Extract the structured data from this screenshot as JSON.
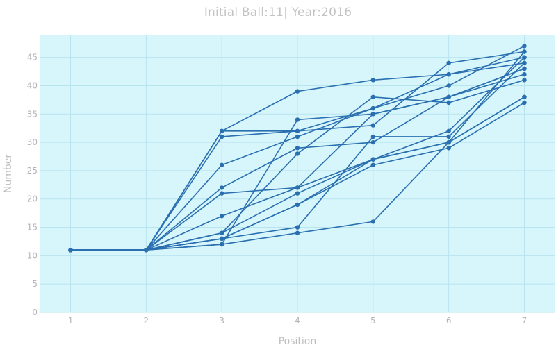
{
  "chart_data": {
    "type": "line",
    "title": "Initial Ball:11| Year:2016",
    "xlabel": "Position",
    "ylabel": "Number",
    "x": [
      1,
      2,
      3,
      4,
      5,
      6,
      7
    ],
    "xlim": [
      0.6,
      7.4
    ],
    "ylim": [
      0,
      49
    ],
    "xticks": [
      1,
      2,
      3,
      4,
      5,
      6,
      7
    ],
    "yticks": [
      0,
      5,
      10,
      15,
      20,
      25,
      30,
      35,
      40,
      45
    ],
    "grid": true,
    "legend": "none",
    "colors": {
      "line": "#2a6fb0",
      "plot_bg": "#d6f6fc",
      "grid": "#b8e4ee"
    },
    "series": [
      {
        "values": [
          11,
          11,
          32,
          39,
          41,
          42,
          44
        ]
      },
      {
        "values": [
          11,
          11,
          31,
          32,
          33,
          44,
          46
        ]
      },
      {
        "values": [
          11,
          11,
          32,
          32,
          36,
          40,
          47
        ]
      },
      {
        "values": [
          11,
          11,
          26,
          31,
          36,
          42,
          45
        ]
      },
      {
        "values": [
          11,
          11,
          22,
          29,
          30,
          38,
          43
        ]
      },
      {
        "values": [
          11,
          11,
          21,
          22,
          27,
          32,
          45
        ]
      },
      {
        "values": [
          11,
          11,
          17,
          22,
          35,
          38,
          42
        ]
      },
      {
        "values": [
          11,
          11,
          14,
          28,
          38,
          37,
          41
        ]
      },
      {
        "values": [
          11,
          11,
          13,
          15,
          31,
          31,
          44
        ]
      },
      {
        "values": [
          11,
          11,
          14,
          21,
          27,
          30,
          38
        ]
      },
      {
        "values": [
          11,
          11,
          12,
          34,
          35,
          38,
          43
        ]
      },
      {
        "values": [
          11,
          11,
          13,
          19,
          26,
          29,
          37
        ]
      },
      {
        "values": [
          11,
          11,
          13,
          19,
          27,
          30,
          38
        ]
      },
      {
        "values": [
          11,
          11,
          12,
          14,
          16,
          30,
          46
        ]
      }
    ]
  }
}
